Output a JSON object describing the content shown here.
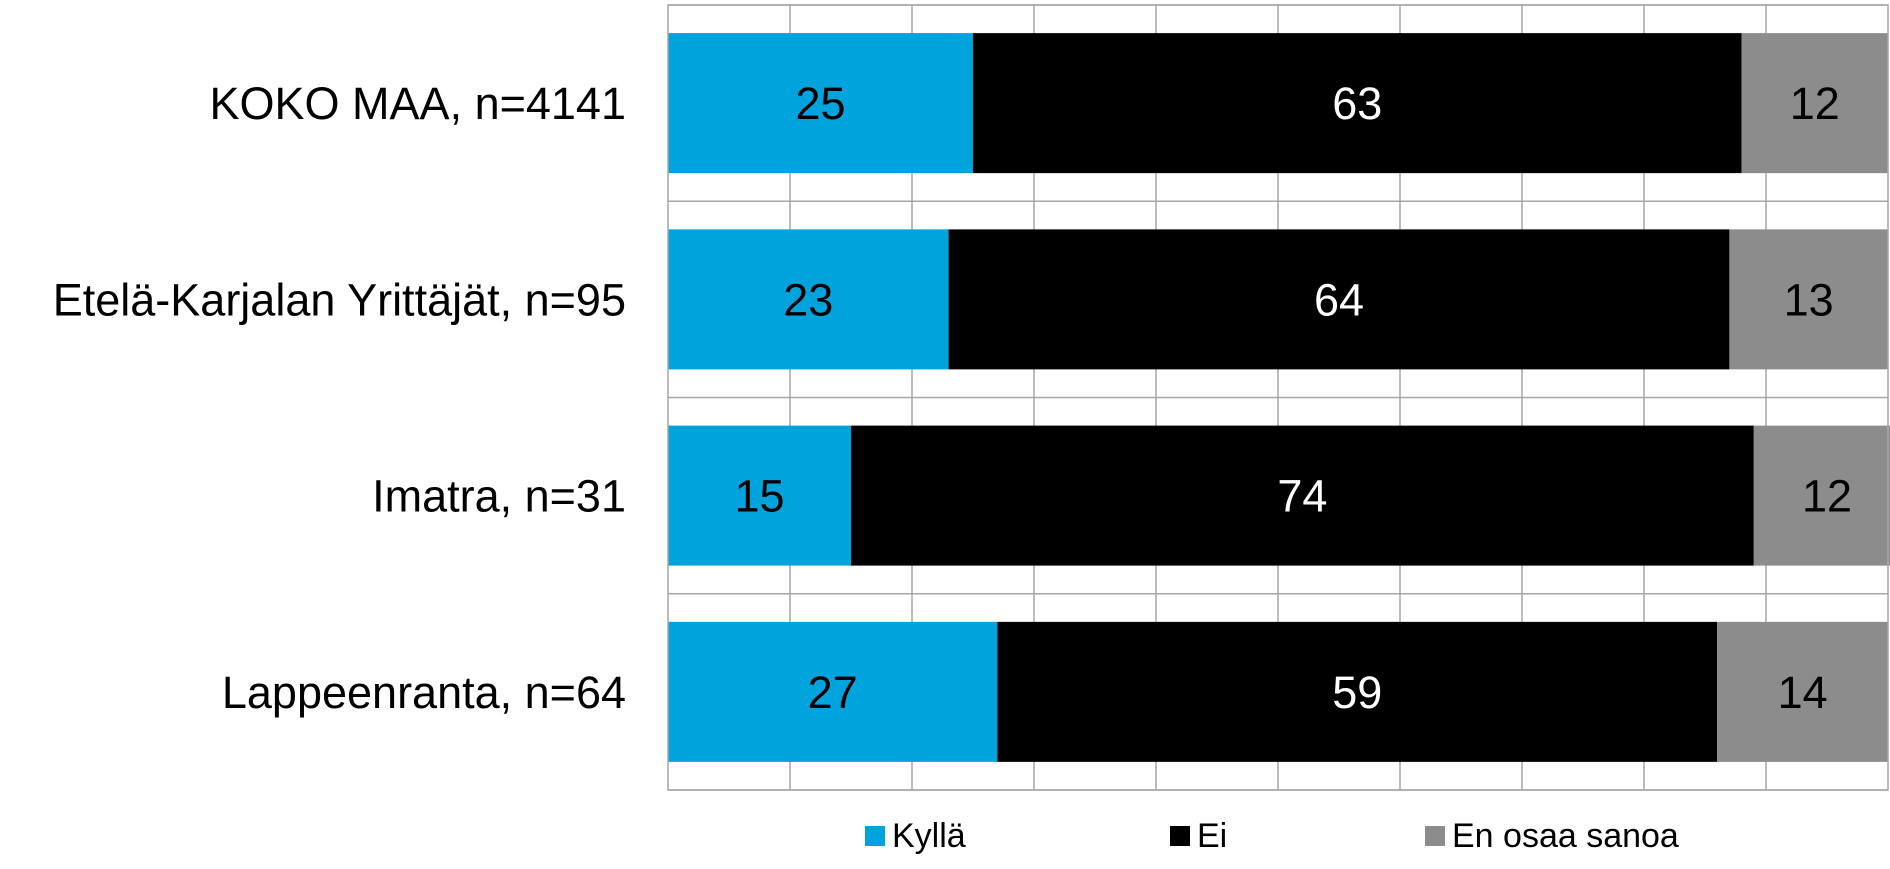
{
  "chart_data": {
    "type": "bar",
    "orientation": "horizontal",
    "stacked": true,
    "percent_stacked": true,
    "categories": [
      "KOKO MAA, n=4141",
      "Etelä-Karjalan Yrittäjät, n=95",
      "Imatra, n=31",
      "Lappeenranta, n=64"
    ],
    "series": [
      {
        "name": "Kyllä",
        "values": [
          25,
          23,
          15,
          27
        ],
        "color": "#00A3DB",
        "label_color": "#000000"
      },
      {
        "name": "Ei",
        "values": [
          63,
          64,
          74,
          59
        ],
        "color": "#000000",
        "label_color": "#ffffff"
      },
      {
        "name": "En osaa sanoa",
        "values": [
          12,
          13,
          12,
          14
        ],
        "color": "#8C8C8C",
        "label_color": "#000000"
      }
    ],
    "title": "",
    "xlabel": "",
    "ylabel": "",
    "xlim": [
      0,
      100
    ],
    "gridlines": "vertical",
    "grid_count": 10,
    "axis_tick_labels_shown": false,
    "data_labels": true,
    "legend_position": "bottom",
    "grid_color": "#A6A6A6"
  }
}
